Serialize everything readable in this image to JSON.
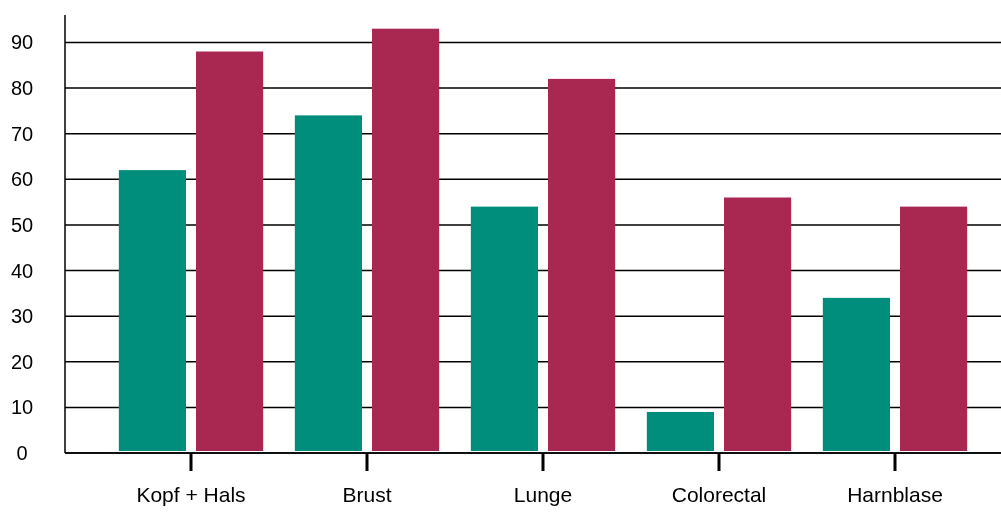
{
  "chart_data": {
    "type": "bar",
    "categories": [
      "Kopf + Hals",
      "Brust",
      "Lunge",
      "Colorectal",
      "Harnblase"
    ],
    "series": [
      {
        "color": "#008e7c",
        "values": [
          62,
          74,
          54,
          9,
          34
        ]
      },
      {
        "color": "#a82852",
        "values": [
          88,
          93,
          82,
          56,
          54
        ]
      }
    ],
    "ylim": [
      0,
      96
    ],
    "yticks": [
      0,
      10,
      20,
      30,
      40,
      50,
      60,
      70,
      80,
      90
    ],
    "grid": "y"
  }
}
